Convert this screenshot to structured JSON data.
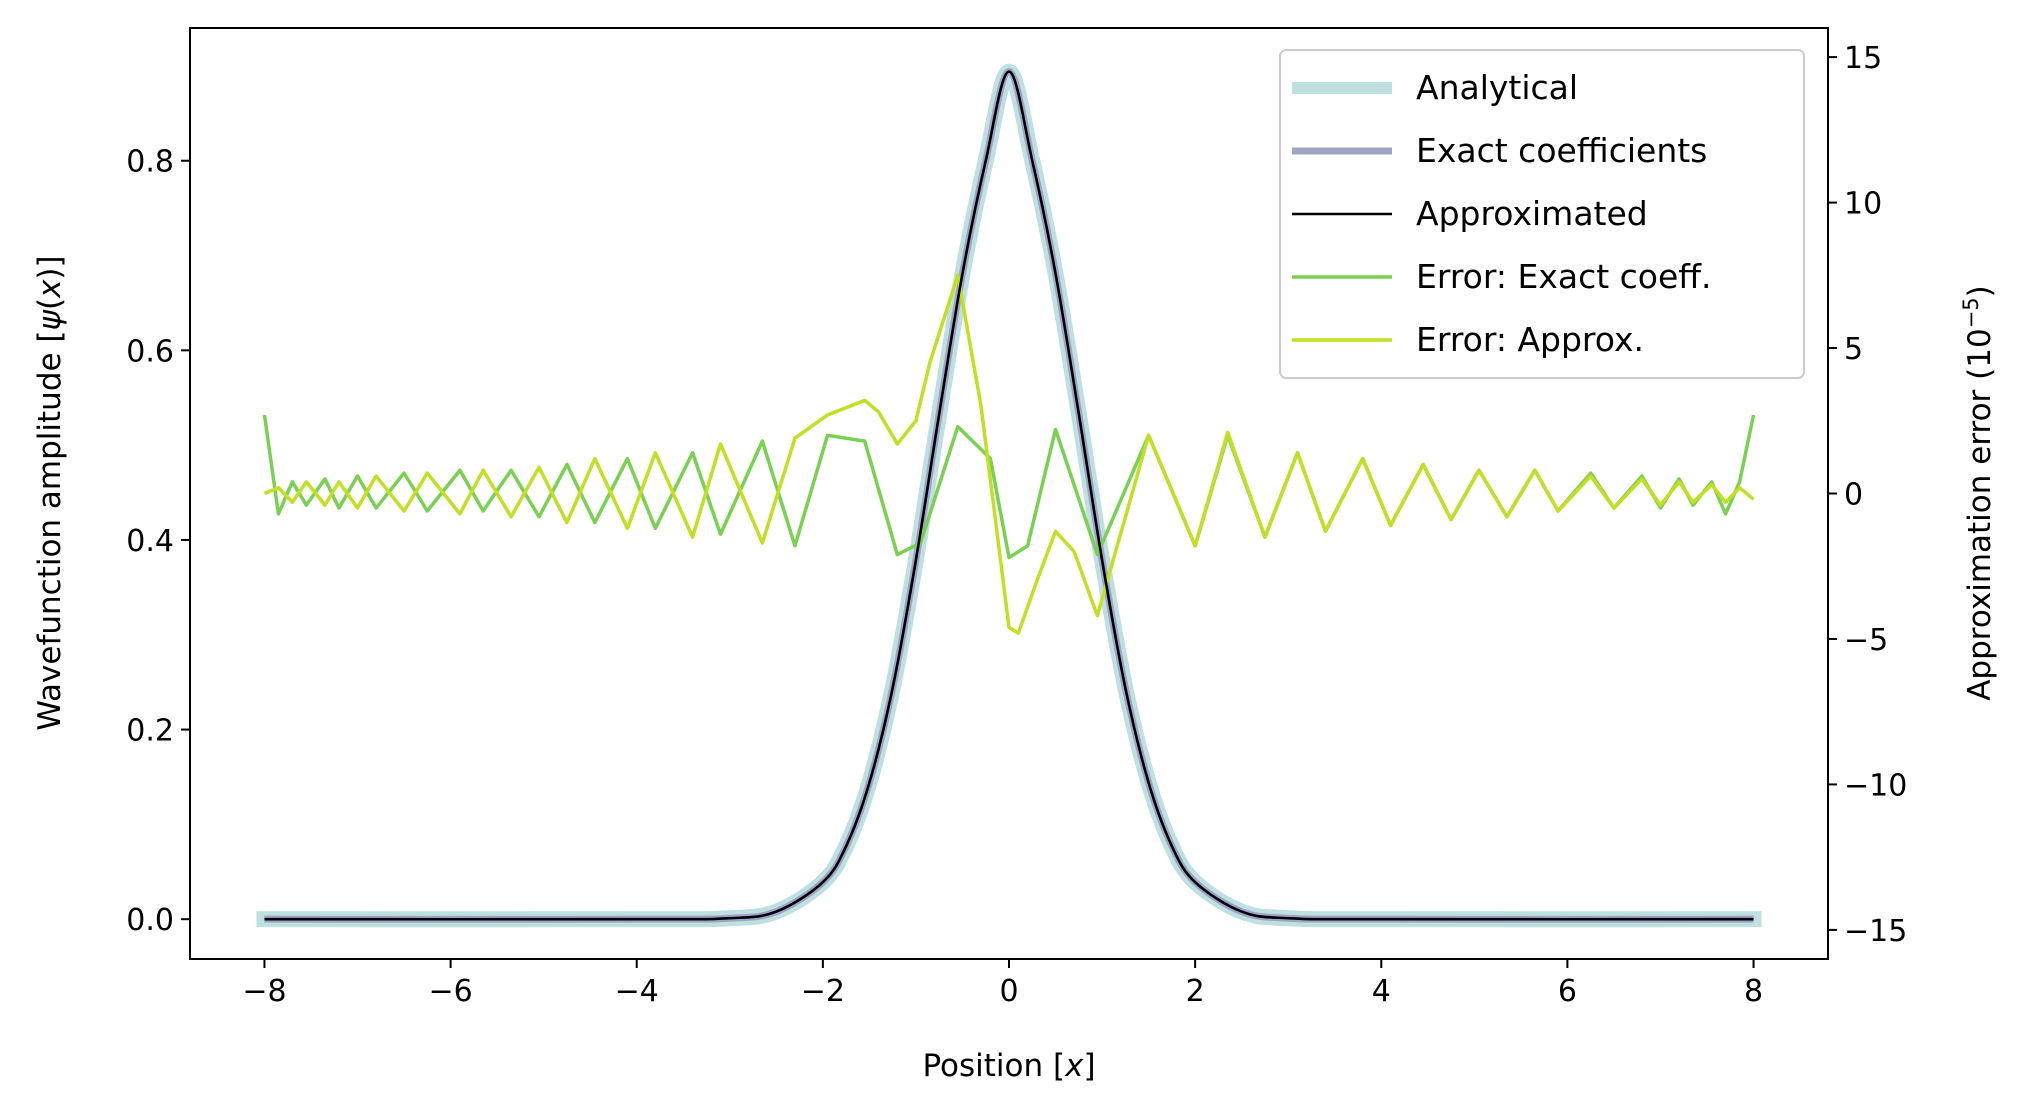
{
  "chart_data": {
    "type": "line",
    "xlabel": "Position [x]",
    "ylabel_left": "Wavefunction amplitude [ψ(x)]",
    "ylabel_right": "Approximation error (10⁻⁵)",
    "xlim": [
      -8.8,
      8.8
    ],
    "ylim_left": [
      -0.042,
      0.94
    ],
    "ylim_right": [
      -16,
      16
    ],
    "x_ticks": [
      -8,
      -6,
      -4,
      -2,
      0,
      2,
      4,
      6,
      8
    ],
    "x_tick_labels": [
      "−8",
      "−6",
      "−4",
      "−2",
      "0",
      "2",
      "4",
      "6",
      "8"
    ],
    "y_left_ticks": [
      0.0,
      0.2,
      0.4,
      0.6,
      0.8
    ],
    "y_left_tick_labels": [
      "0.0",
      "0.2",
      "0.4",
      "0.6",
      "0.8"
    ],
    "y_right_ticks": [
      -15,
      -10,
      -5,
      0,
      5,
      10,
      15
    ],
    "y_right_tick_labels": [
      "−15",
      "−10",
      "−5",
      "0",
      "5",
      "10",
      "15"
    ],
    "grid": false,
    "legend_position": "top-right",
    "series": [
      {
        "name": "Analytical",
        "axis": "left",
        "color": "#bfe0e0",
        "x": [
          -8,
          -4,
          -3,
          -2.5,
          -2,
          -1.75,
          -1.5,
          -1.25,
          -1,
          -0.75,
          -0.5,
          -0.25,
          0,
          0.25,
          0.5,
          0.75,
          1,
          1.25,
          1.5,
          1.75,
          2,
          2.5,
          3,
          4,
          8
        ],
        "y": [
          0,
          0,
          0.001,
          0.008,
          0.039,
          0.077,
          0.144,
          0.244,
          0.379,
          0.533,
          0.681,
          0.8,
          0.894,
          0.8,
          0.681,
          0.533,
          0.379,
          0.244,
          0.144,
          0.077,
          0.039,
          0.008,
          0.001,
          0,
          0
        ]
      },
      {
        "name": "Exact coefficients",
        "axis": "left",
        "color": "#9fa3c4",
        "x": [
          -8,
          -4,
          -3,
          -2.5,
          -2,
          -1.75,
          -1.5,
          -1.25,
          -1,
          -0.75,
          -0.5,
          -0.25,
          0,
          0.25,
          0.5,
          0.75,
          1,
          1.25,
          1.5,
          1.75,
          2,
          2.5,
          3,
          4,
          8
        ],
        "y": [
          0,
          0,
          0.001,
          0.008,
          0.039,
          0.077,
          0.144,
          0.244,
          0.379,
          0.533,
          0.681,
          0.8,
          0.894,
          0.8,
          0.681,
          0.533,
          0.379,
          0.244,
          0.144,
          0.077,
          0.039,
          0.008,
          0.001,
          0,
          0
        ]
      },
      {
        "name": "Approximated",
        "axis": "left",
        "color": "#000000",
        "x": [
          -8,
          -4,
          -3,
          -2.5,
          -2,
          -1.75,
          -1.5,
          -1.25,
          -1,
          -0.75,
          -0.5,
          -0.25,
          0,
          0.25,
          0.5,
          0.75,
          1,
          1.25,
          1.5,
          1.75,
          2,
          2.5,
          3,
          4,
          8
        ],
        "y": [
          0,
          0,
          0.001,
          0.008,
          0.039,
          0.077,
          0.144,
          0.244,
          0.379,
          0.533,
          0.681,
          0.8,
          0.894,
          0.8,
          0.681,
          0.533,
          0.379,
          0.244,
          0.144,
          0.077,
          0.039,
          0.008,
          0.001,
          0,
          0
        ]
      },
      {
        "name": "Error: Exact coeff.",
        "axis": "right",
        "color": "#7ad151",
        "x": [
          -8,
          -7.85,
          -7.7,
          -7.55,
          -7.35,
          -7.2,
          -7.0,
          -6.8,
          -6.5,
          -6.25,
          -5.9,
          -5.65,
          -5.35,
          -5.05,
          -4.75,
          -4.45,
          -4.1,
          -3.8,
          -3.4,
          -3.1,
          -2.65,
          -2.3,
          -1.95,
          -1.55,
          -1.2,
          -0.95,
          -0.55,
          -0.2,
          0.0,
          0.2,
          0.5,
          0.95,
          1.5,
          2.0,
          2.35,
          2.75,
          3.1,
          3.4,
          3.8,
          4.1,
          4.45,
          4.75,
          5.05,
          5.35,
          5.65,
          5.9,
          6.25,
          6.5,
          6.8,
          7.0,
          7.2,
          7.35,
          7.55,
          7.7,
          7.85,
          8.0
        ],
        "y": [
          2.7,
          -0.7,
          0.4,
          -0.4,
          0.5,
          -0.5,
          0.6,
          -0.5,
          0.7,
          -0.6,
          0.8,
          -0.6,
          0.8,
          -0.8,
          1.0,
          -1.0,
          1.2,
          -1.2,
          1.4,
          -1.4,
          1.8,
          -1.8,
          2.0,
          1.8,
          -2.1,
          -1.7,
          2.3,
          1.2,
          -2.2,
          -1.8,
          2.2,
          -2.1,
          2.0,
          -1.8,
          2.0,
          -1.5,
          1.4,
          -1.3,
          1.2,
          -1.1,
          1.0,
          -0.9,
          0.8,
          -0.8,
          0.8,
          -0.6,
          0.7,
          -0.5,
          0.6,
          -0.5,
          0.5,
          -0.4,
          0.4,
          -0.7,
          0.4,
          2.7
        ]
      },
      {
        "name": "Error: Approx.",
        "axis": "right",
        "color": "#c2df23",
        "x": [
          -8,
          -7.85,
          -7.7,
          -7.55,
          -7.35,
          -7.2,
          -7.0,
          -6.8,
          -6.5,
          -6.25,
          -5.9,
          -5.65,
          -5.35,
          -5.05,
          -4.75,
          -4.45,
          -4.1,
          -3.8,
          -3.4,
          -3.1,
          -2.65,
          -2.3,
          -1.95,
          -1.55,
          -1.4,
          -1.2,
          -1.0,
          -0.85,
          -0.55,
          -0.3,
          0.0,
          0.1,
          0.3,
          0.5,
          0.7,
          0.95,
          1.5,
          2.0,
          2.35,
          2.75,
          3.1,
          3.4,
          3.8,
          4.1,
          4.45,
          4.75,
          5.05,
          5.35,
          5.65,
          5.9,
          6.25,
          6.5,
          6.8,
          7.0,
          7.2,
          7.35,
          7.55,
          7.7,
          7.85,
          8.0
        ],
        "y": [
          0,
          0.2,
          -0.3,
          0.4,
          -0.4,
          0.4,
          -0.5,
          0.6,
          -0.6,
          0.7,
          -0.7,
          0.8,
          -0.8,
          0.9,
          -1.0,
          1.2,
          -1.2,
          1.4,
          -1.5,
          1.7,
          -1.7,
          1.9,
          2.7,
          3.2,
          2.8,
          1.7,
          2.5,
          4.5,
          7.5,
          3.0,
          -4.6,
          -4.8,
          -3.0,
          -1.3,
          -2.0,
          -4.2,
          2.0,
          -1.8,
          2.1,
          -1.5,
          1.4,
          -1.3,
          1.2,
          -1.1,
          1.0,
          -0.9,
          0.8,
          -0.8,
          0.8,
          -0.6,
          0.6,
          -0.5,
          0.5,
          -0.4,
          0.4,
          -0.3,
          0.3,
          -0.3,
          0.2,
          -0.2
        ]
      }
    ]
  }
}
